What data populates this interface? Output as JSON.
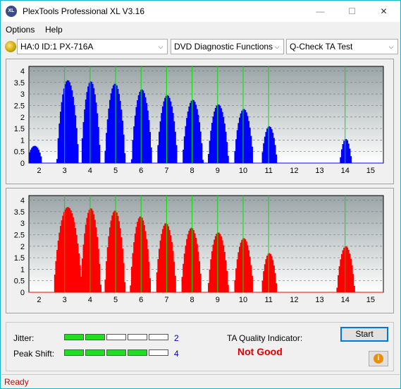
{
  "window": {
    "title": "PlexTools Professional XL V3.16",
    "icon_text": "XL",
    "minimize_glyph": "—",
    "maximize_glyph": "☐",
    "close_glyph": "✕"
  },
  "menu": {
    "options": "Options",
    "help": "Help"
  },
  "toolbar": {
    "drive": "HA:0 ID:1  PX-716A",
    "function": "DVD Diagnostic Functions",
    "test": "Q-Check TA Test",
    "arrow": "⌵"
  },
  "charts": {
    "y_ticks": [
      "4",
      "3.5",
      "3",
      "2.5",
      "2",
      "1.5",
      "1",
      "0.5",
      "0"
    ],
    "x_ticks": [
      "2",
      "3",
      "4",
      "5",
      "6",
      "7",
      "8",
      "9",
      "10",
      "11",
      "12",
      "13",
      "14",
      "15"
    ]
  },
  "chart_data": [
    {
      "type": "bar",
      "name": "top",
      "color": "#0000ff",
      "x_range": [
        1.6,
        15.5
      ],
      "ylim": [
        0,
        4.2
      ],
      "peaks": [
        {
          "x": 1.8,
          "y": 0.75,
          "w": 0.6
        },
        {
          "x": 3.1,
          "y": 3.6,
          "w": 0.85
        },
        {
          "x": 4.0,
          "y": 3.55,
          "w": 0.75
        },
        {
          "x": 4.95,
          "y": 3.45,
          "w": 0.8
        },
        {
          "x": 6.0,
          "y": 3.2,
          "w": 0.8
        },
        {
          "x": 7.0,
          "y": 2.95,
          "w": 0.8
        },
        {
          "x": 8.0,
          "y": 2.75,
          "w": 0.8
        },
        {
          "x": 9.0,
          "y": 2.55,
          "w": 0.8
        },
        {
          "x": 10.0,
          "y": 2.35,
          "w": 0.75
        },
        {
          "x": 11.0,
          "y": 1.6,
          "w": 0.6
        },
        {
          "x": 14.0,
          "y": 1.05,
          "w": 0.45
        }
      ]
    },
    {
      "type": "bar",
      "name": "bottom",
      "color": "#ff0000",
      "x_range": [
        1.6,
        15.5
      ],
      "ylim": [
        0,
        4.2
      ],
      "peaks": [
        {
          "x": 3.1,
          "y": 3.7,
          "w": 1.1
        },
        {
          "x": 4.0,
          "y": 3.65,
          "w": 0.8
        },
        {
          "x": 4.95,
          "y": 3.55,
          "w": 0.8
        },
        {
          "x": 5.95,
          "y": 3.3,
          "w": 0.8
        },
        {
          "x": 6.95,
          "y": 3.0,
          "w": 0.8
        },
        {
          "x": 7.95,
          "y": 2.8,
          "w": 0.8
        },
        {
          "x": 9.0,
          "y": 2.6,
          "w": 0.8
        },
        {
          "x": 10.0,
          "y": 2.35,
          "w": 0.75
        },
        {
          "x": 11.0,
          "y": 1.7,
          "w": 0.6
        },
        {
          "x": 14.0,
          "y": 2.0,
          "w": 0.7
        }
      ]
    }
  ],
  "results": {
    "jitter_label": "Jitter:",
    "jitter_value": "2",
    "jitter_level": 2,
    "peak_label": "Peak Shift:",
    "peak_value": "4",
    "peak_level": 4,
    "meter_max": 5,
    "ta_label": "TA Quality Indicator:",
    "ta_status": "Not Good",
    "start": "Start",
    "info_glyph": "i"
  },
  "status": {
    "text": "Ready"
  }
}
